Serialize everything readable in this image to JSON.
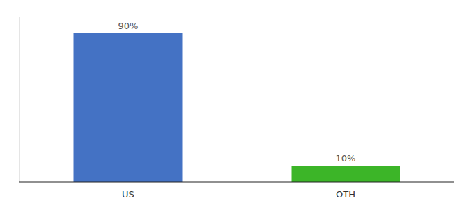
{
  "chart_data": {
    "type": "bar",
    "categories": [
      "US",
      "OTH"
    ],
    "values": [
      90,
      10
    ],
    "value_labels": [
      "90%",
      "10%"
    ],
    "colors": [
      "#4472c4",
      "#3cb528"
    ],
    "ylim": [
      0,
      100
    ],
    "data_labels": true,
    "tick_labels": "x"
  }
}
